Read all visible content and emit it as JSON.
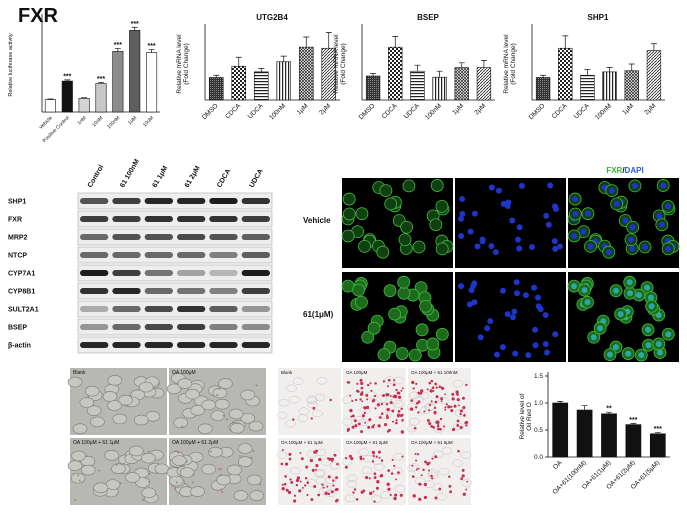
{
  "chart_data": [
    {
      "type": "bar",
      "title": "FXR",
      "y_label": "Relative luciferase activity",
      "categories": [
        "Vehicle",
        "Positive Control",
        "1nM",
        "10nM",
        "100nM",
        "1uM",
        "10uM"
      ],
      "values": [
        1.0,
        2.5,
        1.1,
        2.3,
        4.9,
        6.6,
        4.8
      ],
      "errors": [
        0.05,
        0.1,
        0.05,
        0.1,
        0.25,
        0.25,
        0.25
      ],
      "sig": [
        null,
        "***",
        null,
        "***",
        "***",
        "***",
        "***"
      ],
      "colors": [
        "#ffffff",
        "#111111",
        "#d4d4d4",
        "#c8c8c8",
        "#8c8c8c",
        "#5e5e5e",
        "#ffffff"
      ],
      "ylim": [
        0,
        7.6
      ]
    },
    {
      "type": "bar",
      "title": "UTG2B4",
      "y_label": [
        "Relative mRNA level",
        "(Fold Change)"
      ],
      "categories": [
        "DMSO",
        "CDCA",
        "UDCA",
        "100nM",
        "1μM",
        "2μM"
      ],
      "values": [
        1.0,
        1.5,
        1.25,
        1.7,
        2.35,
        2.3
      ],
      "errors": [
        0.1,
        0.4,
        0.15,
        0.25,
        0.45,
        0.7
      ],
      "patterns": [
        "p-dense",
        "p-check",
        "p-hline",
        "p-vline",
        "p-cross",
        "p-diag"
      ],
      "ylim": [
        0,
        3.2
      ]
    },
    {
      "type": "bar",
      "title": "BSEP",
      "y_label": [
        "Relative mRNA level",
        "(Fold Change)"
      ],
      "categories": [
        "DMSO",
        "CDCA",
        "UDCA",
        "100nM",
        "1μM",
        "2μM"
      ],
      "values": [
        1.0,
        2.2,
        1.2,
        0.95,
        1.35,
        1.35
      ],
      "errors": [
        0.1,
        0.45,
        0.25,
        0.25,
        0.2,
        0.3
      ],
      "patterns": [
        "p-dense",
        "p-check",
        "p-hline",
        "p-vline",
        "p-cross",
        "p-diag"
      ],
      "ylim": [
        0,
        3.0
      ]
    },
    {
      "type": "bar",
      "title": "SHP1",
      "y_label": [
        "Relative mRNA level",
        "(Fold Change)"
      ],
      "categories": [
        "DMSO",
        "CDCA",
        "UDCA",
        "100nM",
        "1μM",
        "2μM"
      ],
      "values": [
        1.0,
        2.3,
        1.1,
        1.25,
        1.3,
        2.2
      ],
      "errors": [
        0.1,
        0.55,
        0.25,
        0.2,
        0.3,
        0.3
      ],
      "patterns": [
        "p-dense",
        "p-check",
        "p-hline",
        "p-vline",
        "p-cross",
        "p-diag"
      ],
      "ylim": [
        0,
        3.2
      ]
    },
    {
      "type": "bar",
      "y_label": [
        "Relative level of",
        "Oil Red O"
      ],
      "categories": [
        "OA",
        "OA+61(100nM)",
        "OA+61(1μM)",
        "OA+61(2μM)",
        "OA+61(5μM)"
      ],
      "values": [
        1.0,
        0.87,
        0.8,
        0.6,
        0.43
      ],
      "errors": [
        0.03,
        0.08,
        0.03,
        0.02,
        0.02
      ],
      "sig": [
        null,
        null,
        "**",
        "***",
        "***"
      ],
      "colors": [
        "#111111",
        "#111111",
        "#111111",
        "#111111",
        "#111111"
      ],
      "ylim": [
        0,
        1.5
      ],
      "yticks": [
        {
          "value": 0,
          "label": "0.0"
        },
        {
          "value": 0.5,
          "label": "0.5"
        },
        {
          "value": 1,
          "label": "1.0"
        },
        {
          "value": 1.5,
          "label": "1.5"
        }
      ]
    }
  ],
  "western_blot": {
    "columns": [
      "Control",
      "61 100nM",
      "61 1μM",
      "61 2μM",
      "CDCA",
      "UDCA"
    ],
    "rows": [
      "SHP1",
      "FXR",
      "MRP2",
      "NTCP",
      "CYP7A1",
      "CYP8B1",
      "SULT2A1",
      "BSEP",
      "β-actin"
    ]
  },
  "immunofluorescence": {
    "title_parts": [
      "FXR",
      "/",
      "DAPI"
    ],
    "rows": [
      "Vehicle",
      "61(1μM)"
    ]
  },
  "phase_contrast": {
    "panels": [
      "Blank",
      "OA 100μM",
      "OA 100μM + 61 1μM",
      "OA 100μM + 61 2μM"
    ]
  },
  "oil_red_o": {
    "panels": [
      "Blank",
      "OA 100μM",
      "OA 100μM + 61 100nM",
      "OA 100μM + 61 1μM",
      "OA 100μM + 61 2μM",
      "OA 100μM + 61 5μM"
    ]
  }
}
